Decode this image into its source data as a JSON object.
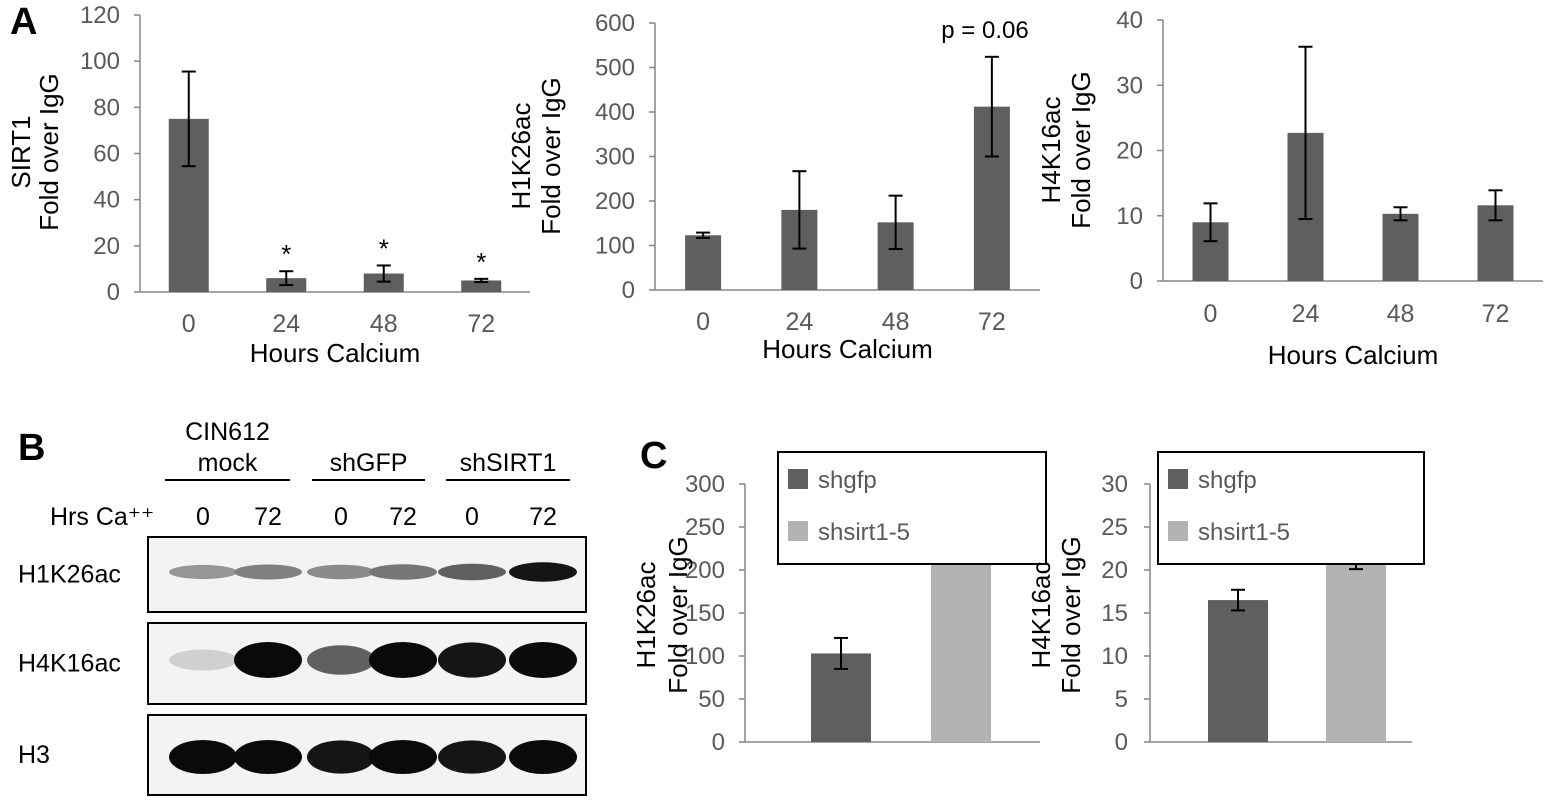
{
  "colors": {
    "dark_bar": "#5f5f5f",
    "light_bar": "#b3b3b3",
    "axis": "#868686",
    "text": "#000000",
    "tick_text": "#595959"
  },
  "panels": {
    "a": "A",
    "b": "B",
    "c": "C"
  },
  "chart_data": [
    {
      "type": "bar",
      "categories": [
        "0",
        "24",
        "48",
        "72"
      ],
      "values": [
        75,
        6,
        8,
        5
      ],
      "errors": [
        20.5,
        3,
        3.5,
        0.7
      ],
      "annotations": [
        "",
        "*",
        "*",
        "*"
      ],
      "ylabel_line1": "SIRT1",
      "ylabel_line2": "Fold over IgG",
      "xlabel": "Hours Calcium",
      "yticks": [
        "0",
        "20",
        "40",
        "60",
        "80",
        "100",
        "120"
      ],
      "ylim": [
        0,
        120
      ]
    },
    {
      "type": "bar",
      "categories": [
        "0",
        "24",
        "48",
        "72"
      ],
      "values": [
        123,
        180,
        152,
        412
      ],
      "errors": [
        6,
        87,
        60,
        112
      ],
      "annotations": [
        "",
        "",
        "",
        ""
      ],
      "note": "p = 0.06",
      "ylabel_line1": "H1K26ac",
      "ylabel_line2": "Fold over IgG",
      "xlabel": "Hours Calcium",
      "yticks": [
        "0",
        "100",
        "200",
        "300",
        "400",
        "500",
        "600"
      ],
      "ylim": [
        0,
        600
      ]
    },
    {
      "type": "bar",
      "categories": [
        "0",
        "24",
        "48",
        "72"
      ],
      "values": [
        9,
        22.7,
        10.3,
        11.6
      ],
      "errors": [
        2.9,
        13.2,
        1,
        2.3
      ],
      "annotations": [
        "",
        "",
        "",
        ""
      ],
      "ylabel_line1": "H4K16ac",
      "ylabel_line2": "Fold over IgG",
      "xlabel": "Hours Calcium",
      "yticks": [
        "0",
        "10",
        "20",
        "30",
        "40"
      ],
      "ylim": [
        0,
        40
      ]
    },
    {
      "type": "bar",
      "categories": [
        "shgfp",
        "shsirt1-5"
      ],
      "values": [
        103,
        248
      ],
      "errors": [
        18,
        30
      ],
      "annotations": [
        "",
        "*"
      ],
      "legend": [
        "shgfp",
        "shsirt1-5"
      ],
      "ylabel_line1": "H1K26ac",
      "ylabel_line2": "Fold over IgG",
      "yticks": [
        "0",
        "50",
        "100",
        "150",
        "200",
        "250",
        "300"
      ],
      "ylim": [
        0,
        300
      ]
    },
    {
      "type": "bar",
      "categories": [
        "shgfp",
        "shsirt1-5"
      ],
      "values": [
        16.5,
        23.5
      ],
      "errors": [
        1.2,
        3.4
      ],
      "annotations": [
        "",
        ""
      ],
      "legend": [
        "shgfp",
        "shsirt1-5"
      ],
      "ylabel_line1": "H4K16ac",
      "ylabel_line2": "Fold over IgG",
      "yticks": [
        "0",
        "5",
        "10",
        "15",
        "20",
        "25",
        "30"
      ],
      "ylim": [
        0,
        30
      ]
    }
  ],
  "blot": {
    "groups": [
      {
        "line1": "CIN612",
        "line2": "mock"
      },
      {
        "line1": "",
        "line2": "shGFP"
      },
      {
        "line1": "",
        "line2": "shSIRT1"
      }
    ],
    "row_label": "Hrs Ca⁺⁺",
    "lanes": [
      "0",
      "72",
      "0",
      "72",
      "0",
      "72"
    ],
    "rows": [
      {
        "label": "H1K26ac",
        "intensity": [
          0.35,
          0.45,
          0.4,
          0.5,
          0.6,
          0.95
        ]
      },
      {
        "label": "H4K16ac",
        "intensity": [
          0.08,
          1.0,
          0.6,
          1.0,
          0.95,
          1.0
        ]
      },
      {
        "label": "H3",
        "intensity": [
          1.0,
          1.0,
          0.95,
          1.0,
          0.95,
          1.0
        ]
      }
    ]
  }
}
